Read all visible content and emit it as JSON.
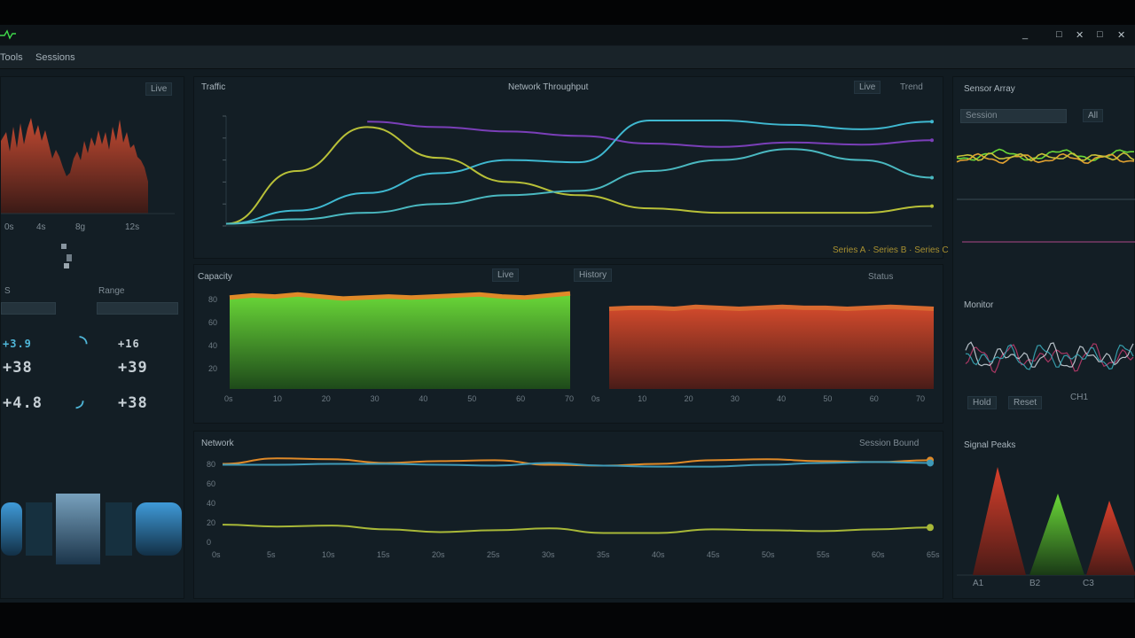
{
  "window": {
    "title": "",
    "controls": [
      "_",
      "□",
      "✕",
      "□",
      "✕"
    ],
    "controls_color": "#b8c2c8"
  },
  "menu": {
    "items": [
      "Tools",
      "Sessions"
    ]
  },
  "left_panel": {
    "header_title": "",
    "header_button": "Live",
    "spectrum_ticks": [
      "0s",
      "4s",
      "8g",
      "12s"
    ],
    "stat_labels": [
      "S",
      "Range"
    ],
    "readouts_left": [
      "+3.9",
      "+38",
      "+4.8"
    ],
    "readouts_right": [
      "+16",
      "+39",
      "+38"
    ],
    "gauge_glyphs": [
      "◝",
      "◞"
    ]
  },
  "top_chart": {
    "title": "Traffic",
    "subtitle": "Network Throughput",
    "legend_button": "Live",
    "legend_text": "Trend",
    "footer": "Series A · Series B · Series C"
  },
  "bars_chart": {
    "title": "Capacity",
    "tab_a": "Live",
    "tab_b": "History",
    "right_label": "Status",
    "x_ticks_left": [
      "0s",
      "10",
      "20",
      "30",
      "40",
      "50",
      "60",
      "70"
    ],
    "x_ticks_right": [
      "0s",
      "10",
      "20",
      "30",
      "40",
      "50",
      "60",
      "70"
    ],
    "y_ticks": [
      "80",
      "60",
      "40",
      "20"
    ]
  },
  "bottom_chart": {
    "title": "Network",
    "legend_text": "Session  Bound",
    "x_ticks": [
      "0s",
      "5s",
      "10s",
      "15s",
      "20s",
      "25s",
      "30s",
      "35s",
      "40s",
      "45s",
      "50s",
      "55s",
      "60s",
      "65s"
    ],
    "y_ticks": [
      "80",
      "60",
      "40",
      "20",
      "0"
    ]
  },
  "right_panel": {
    "header_title": "Sensor Array",
    "field_label": "Session",
    "field_button": "All",
    "section2_title": "Monitor",
    "buttons": [
      "Hold",
      "Reset"
    ],
    "btn_caption": "CH1",
    "triangles_title": "Signal Peaks",
    "triangle_ticks": [
      "A1",
      "B2",
      "C3"
    ]
  },
  "colors": {
    "purple": "#7a3fb8",
    "cyan": "#3fb8d0",
    "yellow_green": "#b8c038",
    "blue": "#2f8fd8",
    "orange": "#e08a28",
    "green": "#6ad838",
    "red": "#c8402c"
  },
  "chart_data": [
    {
      "type": "line",
      "title": "Network Throughput",
      "x": [
        0,
        1,
        2,
        3,
        4,
        5,
        6,
        7,
        8,
        9,
        10
      ],
      "ylim": [
        0,
        100
      ],
      "series": [
        {
          "color": "#7a3fb8",
          "values": [
            null,
            null,
            95,
            90,
            86,
            82,
            75,
            72,
            76,
            74,
            78
          ]
        },
        {
          "color": "#3fb8d0",
          "values": [
            2,
            14,
            30,
            48,
            60,
            58,
            96,
            96,
            92,
            88,
            95
          ]
        },
        {
          "color": "#b8c038",
          "values": [
            2,
            50,
            90,
            62,
            40,
            28,
            16,
            12,
            12,
            12,
            18
          ]
        },
        {
          "color": "#4ab8c0",
          "values": [
            2,
            6,
            12,
            20,
            28,
            32,
            50,
            60,
            70,
            60,
            44
          ]
        }
      ]
    },
    {
      "type": "area",
      "title": "Capacity",
      "series": [
        {
          "color": "#6ad838",
          "values": [
            89,
            91,
            90,
            92,
            90,
            88,
            89,
            90,
            89,
            90,
            91,
            92,
            90,
            89,
            91,
            93
          ]
        },
        {
          "color": "#c8402c",
          "values": [
            78,
            79,
            79,
            78,
            80,
            79,
            78,
            79,
            80,
            79,
            79,
            78,
            79,
            80,
            79,
            78
          ]
        }
      ],
      "ylim": [
        0,
        100
      ]
    },
    {
      "type": "line",
      "title": "Network",
      "x": [
        0,
        1,
        2,
        3,
        4,
        5,
        6,
        7,
        8,
        9,
        10,
        11,
        12,
        13
      ],
      "ylim": [
        0,
        100
      ],
      "series": [
        {
          "color": "#e08a28",
          "values": [
            88,
            94,
            93,
            89,
            91,
            92,
            87,
            86,
            88,
            92,
            93,
            91,
            90,
            92
          ]
        },
        {
          "color": "#3f9ab8",
          "values": [
            87,
            87,
            88,
            88,
            87,
            86,
            89,
            86,
            85,
            85,
            87,
            89,
            90,
            89
          ]
        },
        {
          "color": "#a8b838",
          "values": [
            22,
            20,
            21,
            17,
            14,
            16,
            18,
            13,
            13,
            17,
            16,
            15,
            17,
            19
          ]
        }
      ]
    }
  ]
}
